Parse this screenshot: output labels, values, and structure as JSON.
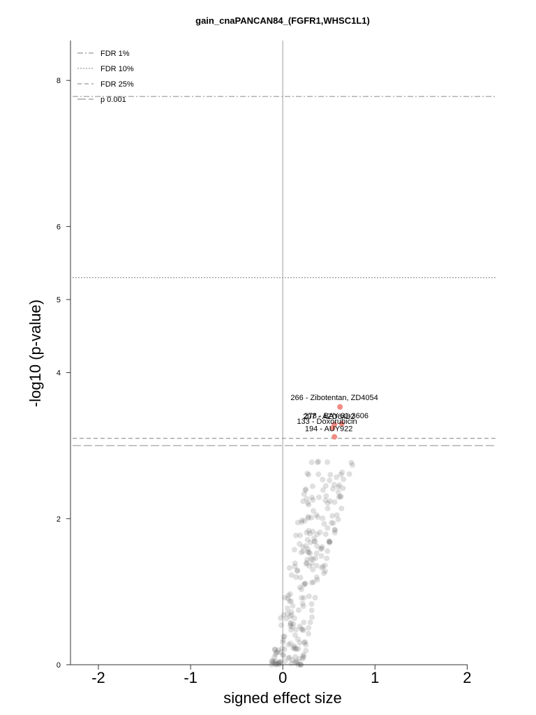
{
  "chart_data": {
    "type": "scatter",
    "title": "gain_cnaPANCAN84_(FGFR1,WHSC1L1)",
    "xlabel": "signed effect size",
    "ylabel": "-log10 (p-value)",
    "xlim": [
      -2.25,
      2.3
    ],
    "ylim": [
      0,
      8.5
    ],
    "x_ticks": [
      -2,
      -1,
      0,
      1,
      2
    ],
    "x_tick_labels": [
      "-2",
      "-1",
      "0",
      "1",
      "2"
    ],
    "y_ticks": [
      0,
      2,
      4,
      5,
      6,
      8
    ],
    "y_tick_labels": [
      "0",
      "2",
      "4",
      "5",
      "6",
      "8"
    ],
    "legend_position": "top-left",
    "thresholds": [
      {
        "name": "FDR 1%",
        "y": 7.78,
        "style": "dashdot"
      },
      {
        "name": "FDR 10%",
        "y": 5.3,
        "style": "dotted"
      },
      {
        "name": "FDR 25%",
        "y": 3.1,
        "style": "dashed"
      },
      {
        "name": "p 0.001",
        "y": 3.0,
        "style": "longdash"
      }
    ],
    "highlighted": [
      {
        "label": "266 - Zibotentan, ZD4054",
        "x": 0.62,
        "y": 3.53
      },
      {
        "label": "278 - BAY 61-3606",
        "x": 0.64,
        "y": 3.3
      },
      {
        "label": "207 - AZD6482",
        "x": 0.56,
        "y": 3.29
      },
      {
        "label": "133 - Doxorubicin",
        "x": 0.54,
        "y": 3.24
      },
      {
        "label": "194 - AUY922",
        "x": 0.56,
        "y": 3.12
      }
    ],
    "colors": {
      "highlight": "#f08c84",
      "background_points": "#555555",
      "zero_line": "#bbbbbb",
      "threshold_lines": "#999999"
    }
  }
}
